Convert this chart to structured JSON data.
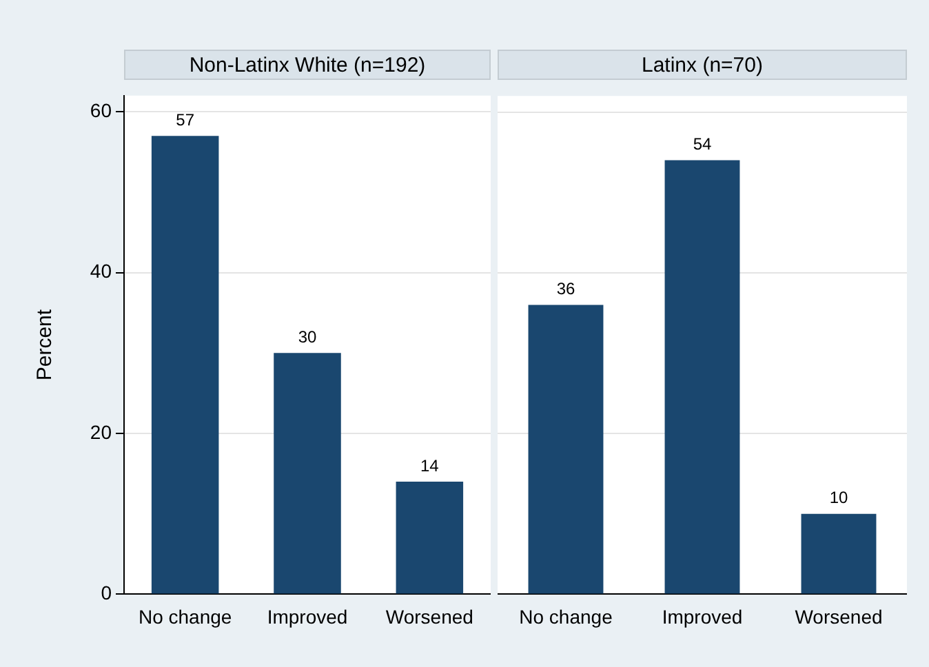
{
  "chart_data": [
    {
      "type": "bar",
      "title": "Non-Latinx White (n=192)",
      "ylabel": "Percent",
      "categories": [
        "No change",
        "Improved",
        "Worsened"
      ],
      "values": [
        57,
        30,
        14
      ],
      "color": "#1a476f",
      "ylim": [
        0,
        62
      ],
      "yticks": [
        0,
        20,
        40,
        60
      ],
      "grid": "y",
      "data_labels": true
    },
    {
      "type": "bar",
      "title": "Latinx (n=70)",
      "categories": [
        "No change",
        "Improved",
        "Worsened"
      ],
      "values": [
        36,
        54,
        10
      ],
      "color": "#1a476f",
      "ylim": [
        0,
        62
      ],
      "yticks": [
        0,
        20,
        40,
        60
      ],
      "grid": "y",
      "data_labels": true,
      "tick_labels": "x"
    }
  ]
}
